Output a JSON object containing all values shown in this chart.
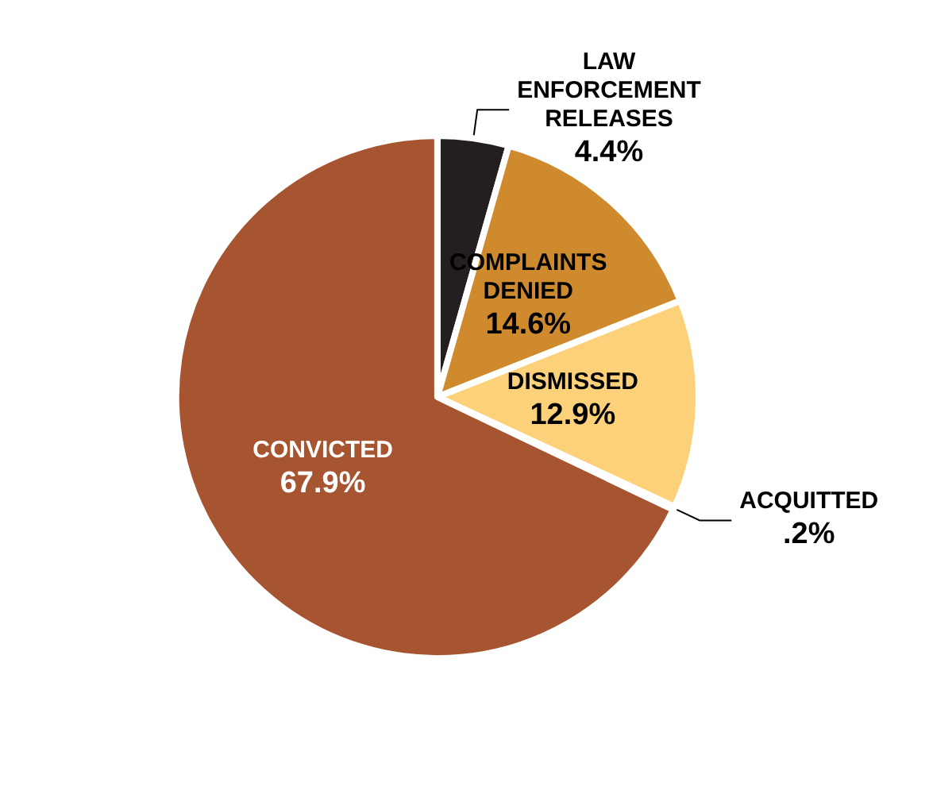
{
  "chart_data": {
    "type": "pie",
    "categories": [
      "LAW ENFORCEMENT RELEASES",
      "COMPLAINTS DENIED",
      "DISMISSED",
      "ACQUITTED",
      "CONVICTED"
    ],
    "values": [
      4.4,
      14.6,
      12.9,
      0.2,
      67.9
    ],
    "value_labels": [
      "4.4%",
      "14.6%",
      "12.9%",
      ".2%",
      "67.9%"
    ],
    "colors": [
      "#231f20",
      "#cf8a2e",
      "#fdd17a",
      "#231f20",
      "#a65530"
    ],
    "legend": false
  }
}
